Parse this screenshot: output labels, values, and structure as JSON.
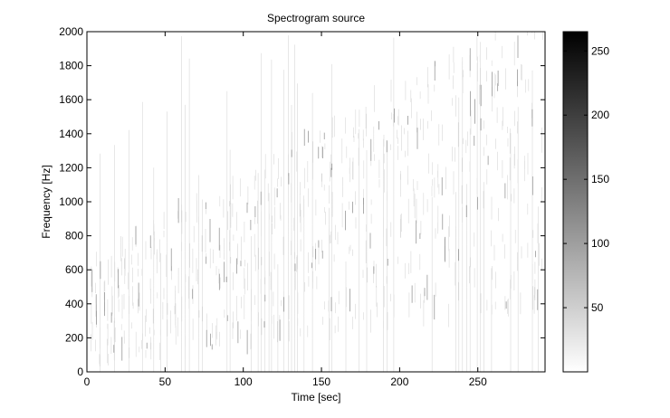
{
  "chart_data": {
    "type": "heatmap",
    "title": "Spectrogram source",
    "xlabel": "Time [sec]",
    "ylabel": "Frequency [Hz]",
    "xlim": [
      0,
      293
    ],
    "ylim": [
      0,
      2000
    ],
    "xticks": [
      0,
      50,
      100,
      150,
      200,
      250
    ],
    "yticks": [
      0,
      200,
      400,
      600,
      800,
      1000,
      1200,
      1400,
      1600,
      1800,
      2000
    ],
    "colorbar": {
      "range": [
        0,
        265
      ],
      "ticks": [
        50,
        100,
        150,
        200,
        250
      ],
      "colormap": "gray-reversed",
      "low_color": "#ffffff",
      "high_color": "#000000"
    },
    "description_trend": {
      "band_center_start_hz": 350,
      "band_center_end_hz": 1300,
      "band_width_start_hz": 300,
      "band_width_end_hz": 900
    }
  }
}
